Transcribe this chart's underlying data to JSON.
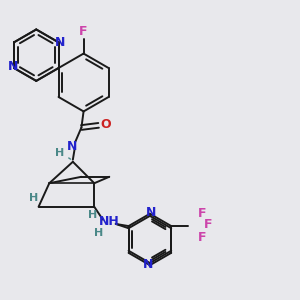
{
  "background_color": "#e8e8ec",
  "bond_color": "#1a1a1a",
  "atom_colors": {
    "N": "#2222cc",
    "O": "#cc2222",
    "F": "#cc44aa",
    "H": "#4a8888"
  },
  "bond_lw": 1.4,
  "font_size": 8.5
}
